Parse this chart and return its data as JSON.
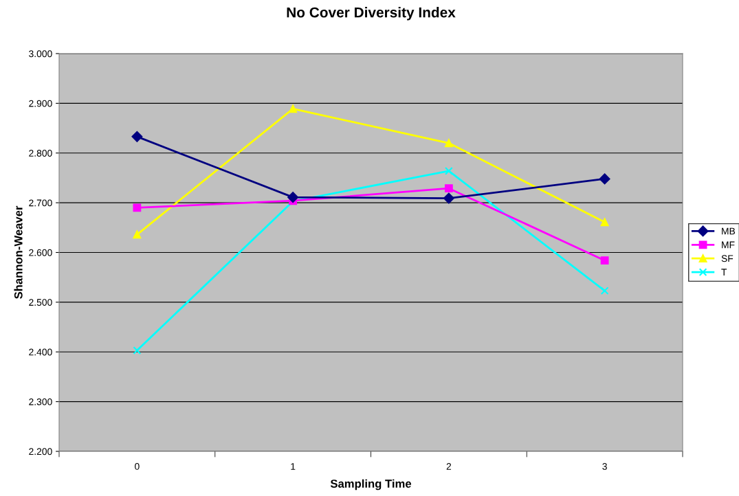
{
  "chart_data": {
    "type": "line",
    "title": "No Cover Diversity Index",
    "xlabel": "Sampling Time",
    "ylabel": "Shannon-Weaver",
    "categories": [
      "0",
      "1",
      "2",
      "3"
    ],
    "series": [
      {
        "name": "MB",
        "color": "#000080",
        "marker": "diamond",
        "values": [
          2.833,
          2.711,
          2.709,
          2.748
        ]
      },
      {
        "name": "MF",
        "color": "#ff00ff",
        "marker": "square",
        "values": [
          2.69,
          2.704,
          2.729,
          2.584
        ]
      },
      {
        "name": "SF",
        "color": "#ffff00",
        "marker": "triangle",
        "values": [
          2.636,
          2.889,
          2.82,
          2.661
        ]
      },
      {
        "name": "T",
        "color": "#00ffff",
        "marker": "cross",
        "values": [
          2.403,
          2.703,
          2.764,
          2.523
        ]
      }
    ],
    "ylim": [
      2.2,
      3.0
    ],
    "yticks": [
      {
        "value": 2.2,
        "label": "2.200"
      },
      {
        "value": 2.3,
        "label": "2.300"
      },
      {
        "value": 2.4,
        "label": "2.400"
      },
      {
        "value": 2.5,
        "label": "2.500"
      },
      {
        "value": 2.6,
        "label": "2.600"
      },
      {
        "value": 2.7,
        "label": "2.700"
      },
      {
        "value": 2.8,
        "label": "2.800"
      },
      {
        "value": 2.9,
        "label": "2.900"
      },
      {
        "value": 3.0,
        "label": "3.000"
      }
    ],
    "grid": "y",
    "legend": "right",
    "line_style": "solid"
  }
}
